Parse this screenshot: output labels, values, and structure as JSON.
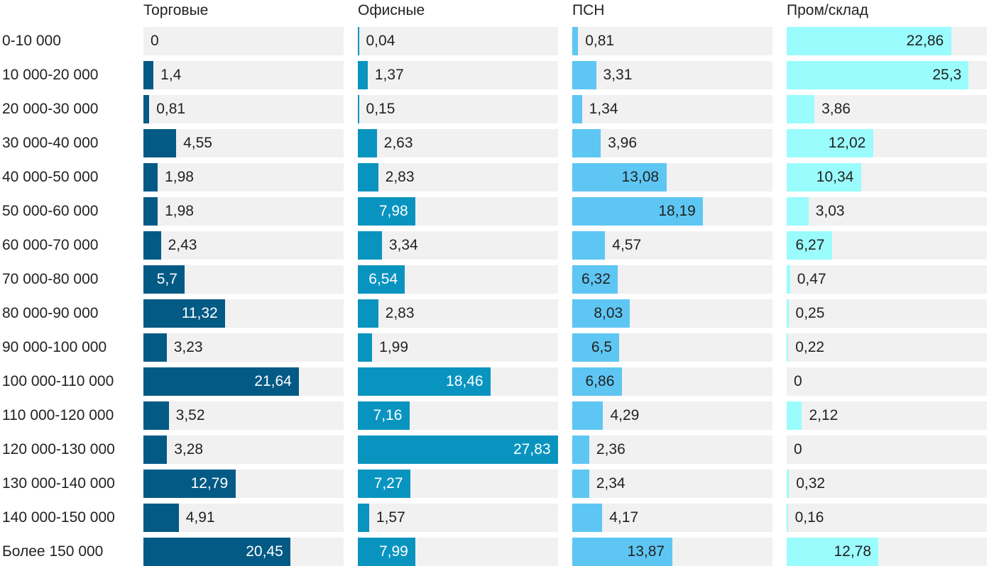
{
  "chart_data": {
    "type": "bar",
    "orientation": "horizontal",
    "layout": "small-multiples",
    "grid": false,
    "categories": [
      "0-10 000",
      "10 000-20 000",
      "20 000-30 000",
      "30 000-40 000",
      "40 000-50 000",
      "50 000-60 000",
      "60 000-70 000",
      "70 000-80 000",
      "80 000-90 000",
      "90 000-100 000",
      "100 000-110 000",
      "110 000-120 000",
      "120 000-130 000",
      "130 000-140 000",
      "140 000-150 000",
      "Более 150 000"
    ],
    "series": [
      {
        "name": "Торговые",
        "color": "#035a85",
        "label_color_inside": "#ffffff",
        "values": [
          0,
          1.4,
          0.81,
          4.55,
          1.98,
          1.98,
          2.43,
          5.7,
          11.32,
          3.23,
          21.64,
          3.52,
          3.28,
          12.79,
          4.91,
          20.45
        ],
        "labels": [
          "0",
          "1,4",
          "0,81",
          "4,55",
          "1,98",
          "1,98",
          "2,43",
          "5,7",
          "11,32",
          "3,23",
          "21,64",
          "3,52",
          "3,28",
          "12,79",
          "4,91",
          "20,45"
        ]
      },
      {
        "name": "Офисные",
        "color": "#0994c0",
        "label_color_inside": "#ffffff",
        "values": [
          0.04,
          1.37,
          0.15,
          2.63,
          2.83,
          7.98,
          3.34,
          6.54,
          2.83,
          1.99,
          18.46,
          7.16,
          27.83,
          7.27,
          1.57,
          7.99
        ],
        "labels": [
          "0,04",
          "1,37",
          "0,15",
          "2,63",
          "2,83",
          "7,98",
          "3,34",
          "6,54",
          "2,83",
          "1,99",
          "18,46",
          "7,16",
          "27,83",
          "7,27",
          "1,57",
          "7,99"
        ]
      },
      {
        "name": "ПСН",
        "color": "#5ec6f3",
        "label_color_inside": "#222222",
        "values": [
          0.81,
          3.31,
          1.34,
          3.96,
          13.08,
          18.19,
          4.57,
          6.32,
          8.03,
          6.5,
          6.86,
          4.29,
          2.36,
          2.34,
          4.17,
          13.87
        ],
        "labels": [
          "0,81",
          "3,31",
          "1,34",
          "3,96",
          "13,08",
          "18,19",
          "4,57",
          "6,32",
          "8,03",
          "6,5",
          "6,86",
          "4,29",
          "2,36",
          "2,34",
          "4,17",
          "13,87"
        ]
      },
      {
        "name": "Пром/склад",
        "color": "#9afcfd",
        "label_color_inside": "#222222",
        "values": [
          22.86,
          25.3,
          3.86,
          12.02,
          10.34,
          3.03,
          6.27,
          0.47,
          0.25,
          0.22,
          0,
          2.12,
          0,
          0.32,
          0.16,
          12.78
        ],
        "labels": [
          "22,86",
          "25,3",
          "3,86",
          "12,02",
          "10,34",
          "3,03",
          "6,27",
          "0,47",
          "0,25",
          "0,22",
          "0",
          "2,12",
          "0",
          "0,32",
          "0,16",
          "12,78"
        ]
      }
    ]
  }
}
